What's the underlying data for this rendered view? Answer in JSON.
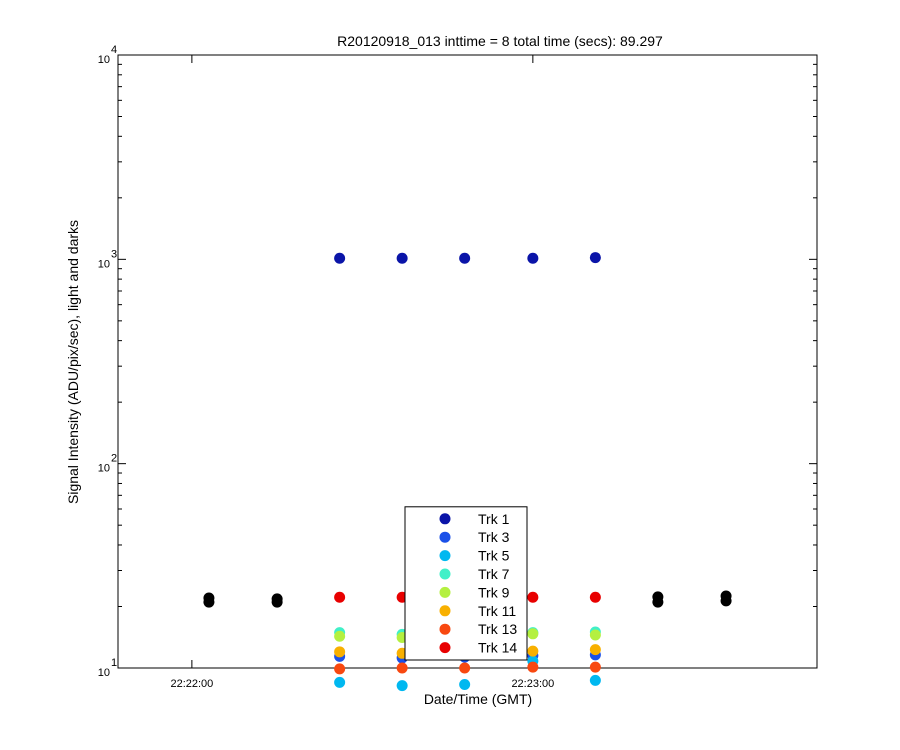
{
  "chart_data": {
    "type": "scatter",
    "title": "R20120918_013 inttime = 8 total time (secs): 89.297",
    "x_label": "Date/Time (GMT)",
    "y_label": "Signal Intensity (ADU/pix/sec), light and darks",
    "log_y": true,
    "legend_location": "south",
    "xlim": [
      80507,
      80630
    ],
    "xticks": [
      {
        "value": 80520,
        "label": "22:22:00"
      },
      {
        "value": 80580,
        "label": "22:23:00"
      }
    ],
    "ylim": [
      10,
      10000
    ],
    "yticks": [
      {
        "value": 10,
        "label": "10",
        "sup": "1"
      },
      {
        "value": 100,
        "label": "10",
        "sup": "2"
      },
      {
        "value": 1000,
        "label": "10",
        "sup": "3"
      },
      {
        "value": 10000,
        "label": "10",
        "sup": "4"
      }
    ],
    "yminorticks": [
      20,
      30,
      40,
      50,
      60,
      70,
      80,
      90,
      200,
      300,
      400,
      500,
      600,
      700,
      800,
      900,
      2000,
      3000,
      4000,
      5000,
      6000,
      7000,
      8000,
      9000
    ],
    "series": [
      {
        "name": "Trk 1",
        "color": "#0a14a8",
        "x": [
          80546,
          80557,
          80568,
          80580,
          80591
        ],
        "values": [
          1012,
          1012,
          1012,
          1012,
          1020
        ]
      },
      {
        "name": "Trk 3",
        "color": "#1a50e8",
        "x": [
          80546,
          80557,
          80568,
          80580,
          80591
        ],
        "values": [
          11.4,
          11.2,
          11.3,
          11.5,
          11.6
        ]
      },
      {
        "name": "Trk 5",
        "color": "#00b8f0",
        "x": [
          80546,
          80557,
          80568,
          80580,
          80591
        ],
        "values": [
          8.5,
          8.2,
          8.3,
          10.8,
          8.7
        ]
      },
      {
        "name": "Trk 7",
        "color": "#40f0c8",
        "x": [
          80546,
          80557,
          80568,
          80580,
          80591
        ],
        "values": [
          14.9,
          14.6,
          14.6,
          14.9,
          15.0
        ]
      },
      {
        "name": "Trk 9",
        "color": "#b4f040",
        "x": [
          80546,
          80557,
          80568,
          80580,
          80591
        ],
        "values": [
          14.3,
          14.1,
          14.1,
          14.7,
          14.5
        ]
      },
      {
        "name": "Trk 11",
        "color": "#f8b000",
        "x": [
          80546,
          80557,
          80568,
          80580,
          80591
        ],
        "values": [
          12.0,
          11.8,
          11.8,
          12.1,
          12.3
        ]
      },
      {
        "name": "Trk 13",
        "color": "#f84810",
        "x": [
          80546,
          80557,
          80568,
          80580,
          80591
        ],
        "values": [
          9.9,
          10.0,
          10.0,
          10.1,
          10.1
        ]
      },
      {
        "name": "Trk 14",
        "color": "#e80000",
        "x": [
          80546,
          80557,
          80568,
          80580,
          80591
        ],
        "values": [
          22.2,
          22.2,
          22.2,
          22.2,
          22.2
        ]
      },
      {
        "color": "#000000",
        "x": [
          80523,
          80535,
          80602,
          80614
        ],
        "values": [
          21.0,
          21.0,
          21.0,
          21.3
        ]
      },
      {
        "color": "#000000",
        "x": [
          80523,
          80535,
          80602,
          80614
        ],
        "values": [
          22.0,
          21.8,
          22.3,
          22.5
        ]
      }
    ]
  }
}
